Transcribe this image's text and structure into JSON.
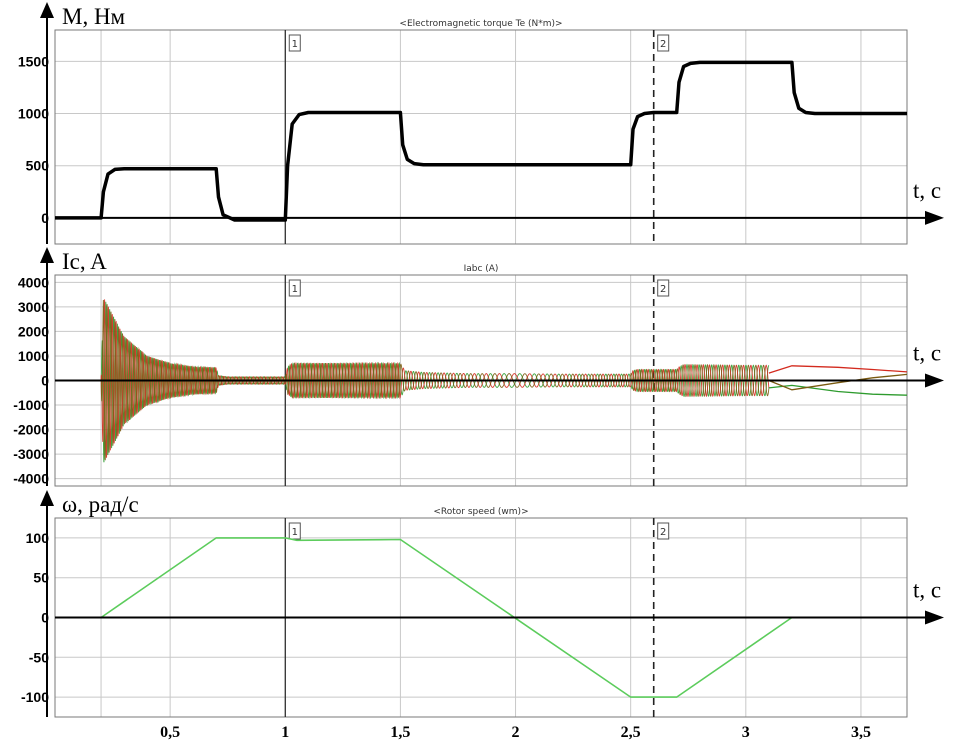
{
  "chart_data": [
    {
      "type": "line",
      "title": "<Electromagnetic torque Te (N*m)>",
      "ylabel": "M, Нм",
      "xlabel": "t, c",
      "ylim": [
        -250,
        1800
      ],
      "yticks": [
        "1500",
        "1000",
        "500",
        "0"
      ],
      "xlim": [
        0,
        3.7
      ],
      "grid": true,
      "markers": [
        {
          "label": "1",
          "x": 1.0,
          "style": "solid"
        },
        {
          "label": "2",
          "x": 2.6,
          "style": "dashed"
        }
      ],
      "series": [
        {
          "color": "#000000",
          "x": [
            0,
            0.2,
            0.21,
            0.23,
            0.26,
            0.3,
            0.35,
            0.7,
            0.71,
            0.73,
            0.78,
            1.0,
            1.01,
            1.03,
            1.06,
            1.1,
            1.5,
            1.51,
            1.53,
            1.56,
            1.6,
            2.5,
            2.51,
            2.53,
            2.56,
            2.6,
            2.7,
            2.71,
            2.73,
            2.76,
            2.8,
            3.2,
            3.21,
            3.23,
            3.26,
            3.3,
            3.7
          ],
          "y": [
            0,
            0,
            250,
            420,
            465,
            470,
            470,
            470,
            200,
            30,
            -20,
            -20,
            500,
            900,
            990,
            1010,
            1010,
            700,
            560,
            520,
            510,
            510,
            850,
            970,
            1000,
            1010,
            1010,
            1300,
            1450,
            1480,
            1490,
            1490,
            1200,
            1050,
            1010,
            1000,
            1000
          ]
        }
      ]
    },
    {
      "type": "line",
      "title": "Iabc (A)",
      "ylabel": "Ic, A",
      "xlabel": "t, c",
      "ylim": [
        -4300,
        4300
      ],
      "yticks": [
        "4000",
        "3000",
        "2000",
        "1000",
        "0",
        "-1000",
        "-2000",
        "-3000",
        "-4000"
      ],
      "xlim": [
        0,
        3.7
      ],
      "grid": true,
      "markers": [
        {
          "label": "1",
          "x": 1.0,
          "style": "solid"
        },
        {
          "label": "2",
          "x": 2.6,
          "style": "dashed"
        }
      ],
      "envelope": {
        "t": [
          0.2,
          0.21,
          0.3,
          0.4,
          0.5,
          0.6,
          0.7,
          0.71,
          0.75,
          1.0,
          1.01,
          1.03,
          1.5,
          1.52,
          1.6,
          1.8,
          2.0,
          2.2,
          2.5,
          2.51,
          2.53,
          2.6,
          2.7,
          2.71,
          2.73,
          3.0,
          3.1
        ],
        "a": [
          0,
          3400,
          1800,
          1000,
          700,
          560,
          520,
          200,
          150,
          150,
          550,
          700,
          700,
          400,
          330,
          280,
          280,
          260,
          260,
          400,
          450,
          450,
          450,
          550,
          650,
          620,
          620
        ]
      },
      "series": [
        {
          "name_shown": false,
          "color": "#2e9b2e",
          "phase": 0
        },
        {
          "name_shown": false,
          "color": "#d32a1e",
          "phase": 2.094
        },
        {
          "name_shown": false,
          "color": "#7a5a10",
          "phase": 4.189
        }
      ],
      "tail": [
        {
          "color": "#d32a1e",
          "x": [
            3.1,
            3.2,
            3.4,
            3.55,
            3.7
          ],
          "y": [
            300,
            600,
            540,
            450,
            350
          ]
        },
        {
          "color": "#2e9b2e",
          "x": [
            3.1,
            3.2,
            3.4,
            3.55,
            3.7
          ],
          "y": [
            -300,
            -200,
            -450,
            -560,
            -600
          ]
        },
        {
          "color": "#7a5a10",
          "x": [
            3.1,
            3.2,
            3.4,
            3.55,
            3.7
          ],
          "y": [
            0,
            -380,
            -90,
            110,
            250
          ]
        }
      ]
    },
    {
      "type": "line",
      "title": "<Rotor speed (wm)>",
      "ylabel": "ω, рад/с",
      "xlabel": "t, c",
      "ylim": [
        -125,
        125
      ],
      "yticks": [
        "100",
        "50",
        "0",
        "-50",
        "-100"
      ],
      "xlim": [
        0,
        3.7
      ],
      "xtick_values": [
        0.5,
        1,
        1.5,
        2,
        2.5,
        3,
        3.5
      ],
      "xticks": [
        "0,5",
        "1",
        "1,5",
        "2",
        "2,5",
        "3",
        "3,5"
      ],
      "grid": true,
      "markers": [
        {
          "label": "1",
          "x": 1.0,
          "style": "solid"
        },
        {
          "label": "2",
          "x": 2.6,
          "style": "dashed"
        }
      ],
      "series": [
        {
          "color": "#5ccc5c",
          "x": [
            0,
            0.2,
            0.7,
            1.0,
            1.05,
            1.5,
            2.5,
            2.7,
            3.2,
            3.7
          ],
          "y": [
            0,
            0,
            100,
            100,
            97,
            98,
            -100,
            -100,
            0,
            0
          ]
        }
      ]
    }
  ]
}
